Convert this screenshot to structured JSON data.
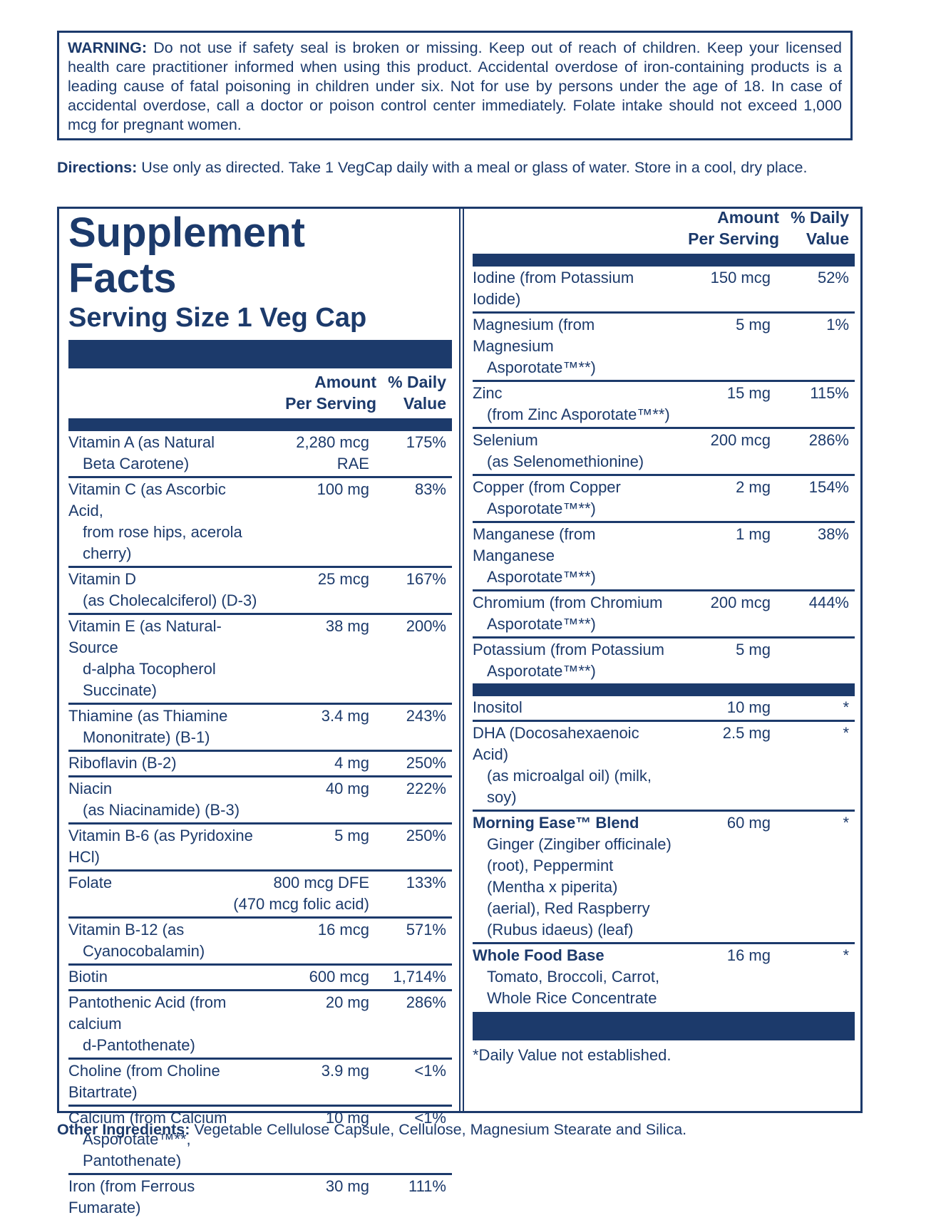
{
  "warning": {
    "label": "WARNING:",
    "text": " Do not use if safety seal is broken or missing. Keep out of reach of children. Keep your licensed health care practitioner informed when using this product. Accidental overdose of iron-containing products is a leading cause of fatal poisoning in children under six. Not for use by persons under the age of 18. In case of accidental overdose, call a doctor or poison control center immediately. Folate intake should not exceed 1,000 mcg for pregnant women."
  },
  "directions": {
    "label": "Directions:",
    "text": " Use only as directed. Take 1 VegCap daily with a meal or glass of water. Store in a cool, dry place."
  },
  "facts": {
    "title_line1": "Supplement",
    "title_line2": "Facts",
    "serving_size": "Serving Size 1 Veg Cap",
    "header_amount": "Amount Per Serving",
    "header_dv": "% Daily Value",
    "left_rows": [
      {
        "name": "Vitamin A (as Natural",
        "sub": "Beta Carotene)",
        "amount": "2,280 mcg RAE",
        "dv": "175%"
      },
      {
        "name": "Vitamin C (as Ascorbic Acid,",
        "sub": "from rose hips, acerola cherry)",
        "amount": "100 mg",
        "dv": "83%"
      },
      {
        "name": "Vitamin D",
        "sub": "(as Cholecalciferol) (D-3)",
        "amount": "25 mcg",
        "dv": "167%"
      },
      {
        "name": "Vitamin E (as Natural-Source",
        "sub": "d-alpha Tocopherol Succinate)",
        "amount": "38 mg",
        "dv": "200%"
      },
      {
        "name": "Thiamine (as Thiamine",
        "sub": "Mononitrate) (B-1)",
        "amount": "3.4 mg",
        "dv": "243%"
      },
      {
        "name": "Riboflavin (B-2)",
        "sub": "",
        "amount": "4 mg",
        "dv": "250%"
      },
      {
        "name": "Niacin",
        "sub": "(as Niacinamide) (B-3)",
        "amount": "40 mg",
        "dv": "222%"
      },
      {
        "name": "Vitamin B-6 (as Pyridoxine HCl)",
        "sub": "",
        "amount": "5 mg",
        "dv": "250%"
      },
      {
        "name": "Folate",
        "sub": "",
        "amount": "800 mcg DFE",
        "amount_sub": "(470 mcg folic acid)",
        "dv": "133%"
      },
      {
        "name": "Vitamin B-12 (as",
        "sub": "Cyanocobalamin)",
        "amount": "16 mcg",
        "dv": "571%"
      },
      {
        "name": "Biotin",
        "sub": "",
        "amount": "600 mcg",
        "dv": "1,714%"
      },
      {
        "name": "Pantothenic Acid (from calcium",
        "sub": "d-Pantothenate)",
        "amount": "20 mg",
        "dv": "286%"
      },
      {
        "name": "Choline (from Choline Bitartrate)",
        "sub": "",
        "amount": "3.9 mg",
        "dv": "<1%"
      },
      {
        "name": "Calcium (from Calcium",
        "sub": "Asporotate™**, Pantothenate)",
        "amount": "10 mg",
        "dv": "<1%"
      },
      {
        "name": "Iron (from Ferrous Fumarate)",
        "sub": "",
        "amount": "30 mg",
        "dv": "111%"
      }
    ],
    "right_rows_a": [
      {
        "name": "Iodine (from Potassium Iodide)",
        "sub": "",
        "amount": "150 mcg",
        "dv": "52%"
      },
      {
        "name": "Magnesium (from Magnesium",
        "sub": "Asporotate™**)",
        "amount": "5 mg",
        "dv": "1%"
      },
      {
        "name": "Zinc",
        "sub": "(from Zinc Asporotate™**)",
        "amount": "15 mg",
        "dv": "115%"
      },
      {
        "name": "Selenium",
        "sub": "(as Selenomethionine)",
        "amount": "200 mcg",
        "dv": "286%"
      },
      {
        "name": "Copper (from Copper",
        "sub": "Asporotate™**)",
        "amount": "2 mg",
        "dv": "154%"
      },
      {
        "name": "Manganese (from Manganese",
        "sub": "Asporotate™**)",
        "amount": "1 mg",
        "dv": "38%"
      },
      {
        "name": "Chromium (from Chromium",
        "sub": "Asporotate™**)",
        "amount": "200 mcg",
        "dv": "444%"
      },
      {
        "name": "Potassium (from Potassium",
        "sub": "Asporotate™**)",
        "amount": "5 mg",
        "dv": ""
      }
    ],
    "right_rows_b": [
      {
        "name": "Inositol",
        "sub": "",
        "amount": "10 mg",
        "dv": "*"
      },
      {
        "name": "DHA (Docosahexaenoic Acid)",
        "sub": "(as microalgal oil) (milk, soy)",
        "amount": "2.5 mg",
        "dv": "*"
      },
      {
        "name": "Morning Ease™ Blend",
        "sub": "Ginger (Zingiber officinale) (root), Peppermint (Mentha x piperita) (aerial), Red Raspberry (Rubus idaeus) (leaf)",
        "amount": "60 mg",
        "dv": "*",
        "bold": true
      },
      {
        "name": "Whole Food Base",
        "sub": "Tomato, Broccoli, Carrot, Whole Rice Concentrate",
        "amount": "16 mg",
        "dv": "*",
        "bold": true
      }
    ],
    "footnote": "*Daily Value not established."
  },
  "other": {
    "label": "Other Ingredients:",
    "text": " Vegetable Cellulose Capsule, Cellulose, Magnesium Stearate and Silica."
  }
}
